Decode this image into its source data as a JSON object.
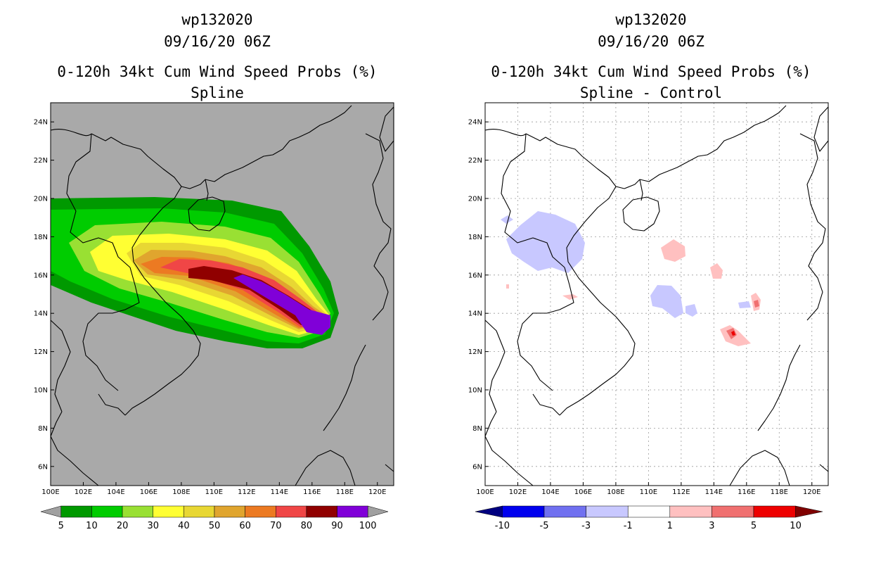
{
  "left_panel": {
    "title_line1": "wp132020",
    "title_line2": "09/16/20 06Z",
    "title_line3": "0-120h 34kt Cum Wind Speed Probs (%)",
    "title_line4": "Spline",
    "background_color": "#a9a9a9",
    "colorbar": {
      "colors": [
        "#a0a0a0",
        "#009900",
        "#00cc00",
        "#99e033",
        "#ffff33",
        "#e8d733",
        "#e0a52e",
        "#ec7a22",
        "#f04646",
        "#900000",
        "#8000d8",
        "#a0a0a0"
      ],
      "labels": [
        "5",
        "10",
        "20",
        "30",
        "40",
        "50",
        "60",
        "70",
        "80",
        "90",
        "100"
      ]
    }
  },
  "right_panel": {
    "title_line1": "wp132020",
    "title_line2": "09/16/20 06Z",
    "title_line3": "0-120h 34kt Cum Wind Speed Probs (%)",
    "title_line4": "Spline - Control",
    "background_color": "#ffffff",
    "colorbar": {
      "colors": [
        "#000080",
        "#0000ee",
        "#7070f0",
        "#c8c8ff",
        "#ffffff",
        "#ffc0c0",
        "#f07070",
        "#ee0000",
        "#800000"
      ],
      "labels": [
        "-10",
        "-5",
        "-3",
        "-1",
        "1",
        "3",
        "5",
        "10"
      ]
    }
  },
  "axes": {
    "lon_labels": [
      "100E",
      "102E",
      "104E",
      "106E",
      "108E",
      "110E",
      "112E",
      "114E",
      "116E",
      "118E",
      "120E"
    ],
    "lat_labels": [
      "6N",
      "8N",
      "10N",
      "12N",
      "14N",
      "16N",
      "18N",
      "20N",
      "22N",
      "24N"
    ]
  },
  "map_extent": {
    "lon_min": 100,
    "lon_max": 121,
    "lat_min": 5,
    "lat_max": 25
  },
  "probability_bands_pct": [
    5,
    10,
    20,
    30,
    40,
    50,
    60,
    70,
    80,
    90,
    100
  ]
}
